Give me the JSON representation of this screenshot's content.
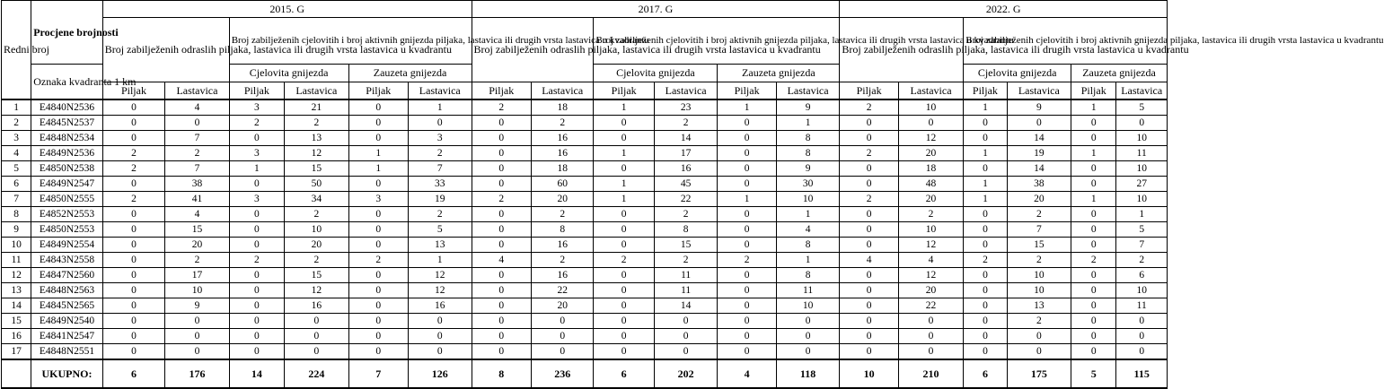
{
  "header": {
    "redni_broj": "Redni broj",
    "procjene_brojnosti": "Procjene brojnosti",
    "oznaka_kvadranta": "Oznaka kvadranta 1 km",
    "adults_label": "Broj zabilježenih odraslih piljaka, lastavica ili drugih vrsta lastavica u kvadrantu",
    "nests_label": "Broj zabilježenih cjelovitih i broj aktivnih gnijezda piljaka, lastavica ili drugih vrsta lastavica u kvadrantu",
    "cjelovita": "Cjelovita gnijezda",
    "zauzeta": "Zauzeta gnijezda",
    "piljak": "Piljak",
    "lastavica": "Lastavica",
    "years": [
      "2015. G",
      "2017. G",
      "2022. G"
    ]
  },
  "rows": [
    {
      "n": "1",
      "code": "E4840N2536",
      "v": [
        0,
        4,
        3,
        21,
        0,
        1,
        2,
        18,
        1,
        23,
        1,
        9,
        2,
        10,
        1,
        9,
        1,
        5
      ]
    },
    {
      "n": "2",
      "code": "E4845N2537",
      "v": [
        0,
        0,
        2,
        2,
        0,
        0,
        0,
        2,
        0,
        2,
        0,
        1,
        0,
        0,
        0,
        0,
        0,
        0
      ]
    },
    {
      "n": "3",
      "code": "E4848N2534",
      "v": [
        0,
        7,
        0,
        13,
        0,
        3,
        0,
        16,
        0,
        14,
        0,
        8,
        0,
        12,
        0,
        14,
        0,
        10
      ]
    },
    {
      "n": "4",
      "code": "E4849N2536",
      "v": [
        2,
        2,
        3,
        12,
        1,
        2,
        0,
        16,
        1,
        17,
        0,
        8,
        2,
        20,
        1,
        19,
        1,
        11
      ]
    },
    {
      "n": "5",
      "code": "E4850N2538",
      "v": [
        2,
        7,
        1,
        15,
        1,
        7,
        0,
        18,
        0,
        16,
        0,
        9,
        0,
        18,
        0,
        14,
        0,
        10
      ]
    },
    {
      "n": "6",
      "code": "E4849N2547",
      "v": [
        0,
        38,
        0,
        50,
        0,
        33,
        0,
        60,
        1,
        45,
        0,
        30,
        0,
        48,
        1,
        38,
        0,
        27
      ]
    },
    {
      "n": "7",
      "code": "E4850N2555",
      "v": [
        2,
        41,
        3,
        34,
        3,
        19,
        2,
        20,
        1,
        22,
        1,
        10,
        2,
        20,
        1,
        20,
        1,
        10
      ]
    },
    {
      "n": "8",
      "code": "E4852N2553",
      "v": [
        0,
        4,
        0,
        2,
        0,
        2,
        0,
        2,
        0,
        2,
        0,
        1,
        0,
        2,
        0,
        2,
        0,
        1
      ]
    },
    {
      "n": "9",
      "code": "E4850N2553",
      "v": [
        0,
        15,
        0,
        10,
        0,
        5,
        0,
        8,
        0,
        8,
        0,
        4,
        0,
        10,
        0,
        7,
        0,
        5
      ]
    },
    {
      "n": "10",
      "code": "E4849N2554",
      "v": [
        0,
        20,
        0,
        20,
        0,
        13,
        0,
        16,
        0,
        15,
        0,
        8,
        0,
        12,
        0,
        15,
        0,
        7
      ]
    },
    {
      "n": "11",
      "code": "E4843N2558",
      "v": [
        0,
        2,
        2,
        2,
        2,
        1,
        4,
        2,
        2,
        2,
        2,
        1,
        4,
        4,
        2,
        2,
        2,
        2
      ]
    },
    {
      "n": "12",
      "code": "E4847N2560",
      "v": [
        0,
        17,
        0,
        15,
        0,
        12,
        0,
        16,
        0,
        11,
        0,
        8,
        0,
        12,
        0,
        10,
        0,
        6
      ]
    },
    {
      "n": "13",
      "code": "E4848N2563",
      "v": [
        0,
        10,
        0,
        12,
        0,
        12,
        0,
        22,
        0,
        11,
        0,
        11,
        0,
        20,
        0,
        10,
        0,
        10
      ]
    },
    {
      "n": "14",
      "code": "E4845N2565",
      "v": [
        0,
        9,
        0,
        16,
        0,
        16,
        0,
        20,
        0,
        14,
        0,
        10,
        0,
        22,
        0,
        13,
        0,
        11
      ]
    },
    {
      "n": "15",
      "code": "E4849N2540",
      "v": [
        0,
        0,
        0,
        0,
        0,
        0,
        0,
        0,
        0,
        0,
        0,
        0,
        0,
        0,
        0,
        2,
        0,
        0
      ]
    },
    {
      "n": "16",
      "code": "E4841N2547",
      "v": [
        0,
        0,
        0,
        0,
        0,
        0,
        0,
        0,
        0,
        0,
        0,
        0,
        0,
        0,
        0,
        0,
        0,
        0
      ]
    },
    {
      "n": "17",
      "code": "E4848N2551",
      "v": [
        0,
        0,
        0,
        0,
        0,
        0,
        0,
        0,
        0,
        0,
        0,
        0,
        0,
        0,
        0,
        0,
        0,
        0
      ]
    }
  ],
  "total": {
    "label": "UKUPNO:",
    "v": [
      6,
      176,
      14,
      224,
      7,
      126,
      8,
      236,
      6,
      202,
      4,
      118,
      10,
      210,
      6,
      175,
      5,
      115
    ]
  }
}
